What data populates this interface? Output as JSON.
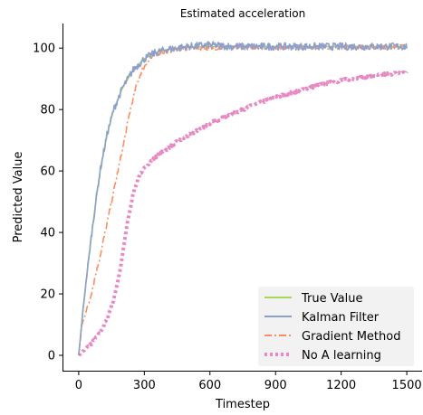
{
  "chart_data": {
    "type": "line",
    "title": "Estimated acceleration",
    "xlabel": "Timestep",
    "ylabel": "Predicted Value",
    "xlim": [
      -70,
      1570
    ],
    "ylim": [
      -5,
      108
    ],
    "xticks": [
      0,
      300,
      600,
      900,
      1200,
      1500
    ],
    "yticks": [
      0,
      20,
      40,
      60,
      80,
      100
    ],
    "grid": false,
    "legend_position": "bottom-right",
    "series": [
      {
        "name": "True Value",
        "color": "#a6d854",
        "style": "solid",
        "x": [
          0,
          20,
          40,
          60,
          80,
          100,
          130,
          160,
          200,
          250,
          300,
          350,
          400,
          450,
          500,
          600,
          700,
          800,
          900,
          1000,
          1100,
          1200,
          1300,
          1400,
          1500
        ],
        "y": [
          0,
          15,
          28,
          40,
          51,
          61,
          72,
          80,
          87,
          93,
          96.5,
          98.5,
          99.5,
          100,
          100.3,
          100.5,
          100.5,
          100.5,
          100.5,
          100.5,
          100.5,
          100.5,
          100.5,
          100.5,
          100.5
        ]
      },
      {
        "name": "Kalman Filter",
        "color": "#8da0cb",
        "style": "solid",
        "noise": 1.2,
        "x": [
          0,
          20,
          40,
          60,
          80,
          100,
          130,
          160,
          200,
          250,
          300,
          350,
          400,
          450,
          500,
          600,
          700,
          800,
          900,
          1000,
          1100,
          1200,
          1300,
          1400,
          1500
        ],
        "y": [
          0,
          15,
          28,
          40,
          51,
          61,
          72,
          80,
          87,
          93,
          96.5,
          98.5,
          99.5,
          100,
          100.5,
          101,
          100.5,
          100.5,
          100.5,
          100.5,
          100.5,
          100.5,
          100.5,
          100.5,
          100.5
        ]
      },
      {
        "name": "Gradient Method",
        "color": "#fc8d62",
        "style": "dashdot",
        "noise": 0.7,
        "x": [
          0,
          15,
          50,
          100,
          150,
          200,
          230,
          260,
          290,
          320,
          350,
          400,
          450,
          500,
          600,
          700,
          800,
          900,
          1000,
          1100,
          1200,
          1300,
          1400,
          1500
        ],
        "y": [
          0,
          10,
          18,
          33,
          50,
          67,
          78,
          87,
          93,
          96,
          98,
          99,
          99.5,
          100,
          100,
          100,
          100.3,
          100.3,
          100.3,
          100.3,
          100.3,
          100.3,
          100.3,
          100.5
        ]
      },
      {
        "name": "No A learning",
        "color": "#e78ac3",
        "style": "dotted",
        "noise": 0.4,
        "x": [
          0,
          30,
          60,
          100,
          130,
          160,
          190,
          220,
          250,
          280,
          320,
          360,
          400,
          450,
          500,
          550,
          600,
          700,
          800,
          900,
          1000,
          1100,
          1200,
          1300,
          1400,
          1500
        ],
        "y": [
          0,
          2,
          4,
          7.5,
          12,
          18,
          28,
          42,
          53,
          59,
          62.5,
          65,
          67,
          69.5,
          71.5,
          73.5,
          75.5,
          78.5,
          81.5,
          84,
          86,
          88,
          89.5,
          90.5,
          91.5,
          92
        ]
      }
    ]
  }
}
